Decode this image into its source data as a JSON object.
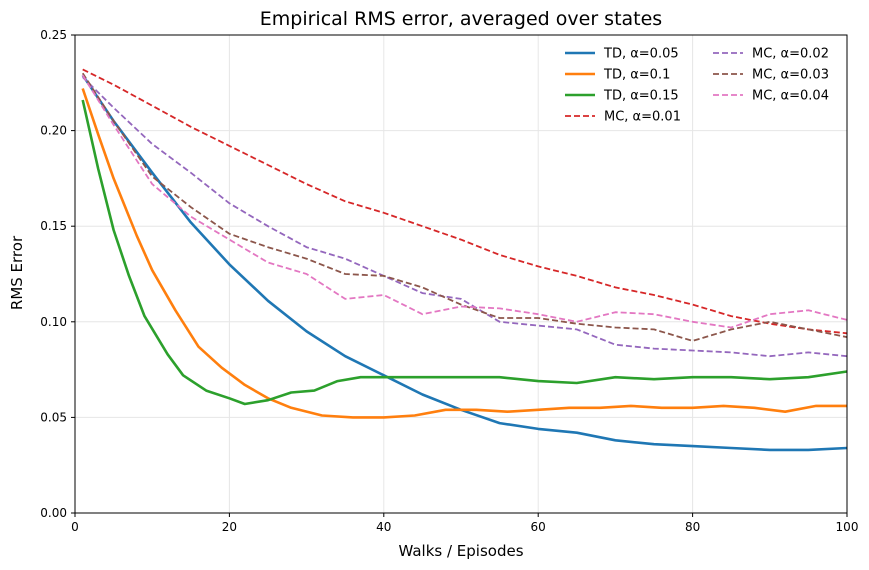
{
  "chart_data": {
    "type": "line",
    "title": "Empirical RMS error, averaged over states",
    "xlabel": "Walks / Episodes",
    "ylabel": "RMS Error",
    "xlim": [
      0,
      100
    ],
    "ylim": [
      0,
      0.25
    ],
    "xticks": [
      "0",
      "20",
      "40",
      "60",
      "80",
      "100"
    ],
    "yticks": [
      "0.00",
      "0.05",
      "0.10",
      "0.15",
      "0.20",
      "0.25"
    ],
    "grid": true,
    "legend_position": "top-right",
    "series": [
      {
        "name": "TD, α=0.05",
        "color": "#1f77b4",
        "dash": "solid",
        "x": [
          1,
          5,
          10,
          15,
          20,
          25,
          30,
          35,
          40,
          45,
          50,
          55,
          60,
          65,
          70,
          75,
          80,
          85,
          90,
          95,
          100
        ],
        "y": [
          0.229,
          0.205,
          0.178,
          0.152,
          0.13,
          0.111,
          0.095,
          0.082,
          0.072,
          0.062,
          0.054,
          0.047,
          0.044,
          0.042,
          0.038,
          0.036,
          0.035,
          0.034,
          0.033,
          0.033,
          0.034
        ]
      },
      {
        "name": "TD, α=0.1",
        "color": "#ff7f0e",
        "dash": "solid",
        "x": [
          1,
          3,
          5,
          8,
          10,
          13,
          16,
          19,
          22,
          25,
          28,
          32,
          36,
          40,
          44,
          48,
          52,
          56,
          60,
          64,
          68,
          72,
          76,
          80,
          84,
          88,
          92,
          96,
          100
        ],
        "y": [
          0.222,
          0.198,
          0.175,
          0.145,
          0.127,
          0.106,
          0.087,
          0.076,
          0.067,
          0.06,
          0.055,
          0.051,
          0.05,
          0.05,
          0.051,
          0.054,
          0.054,
          0.053,
          0.054,
          0.055,
          0.055,
          0.056,
          0.055,
          0.055,
          0.056,
          0.055,
          0.053,
          0.056,
          0.056
        ]
      },
      {
        "name": "TD, α=0.15",
        "color": "#2ca02c",
        "dash": "solid",
        "x": [
          1,
          3,
          5,
          7,
          9,
          12,
          14,
          17,
          20,
          22,
          25,
          28,
          31,
          34,
          37,
          40,
          45,
          50,
          55,
          60,
          65,
          70,
          75,
          80,
          85,
          90,
          95,
          100
        ],
        "y": [
          0.216,
          0.18,
          0.148,
          0.124,
          0.103,
          0.083,
          0.072,
          0.064,
          0.06,
          0.057,
          0.059,
          0.063,
          0.064,
          0.069,
          0.071,
          0.071,
          0.071,
          0.071,
          0.071,
          0.069,
          0.068,
          0.071,
          0.07,
          0.071,
          0.071,
          0.07,
          0.071,
          0.074
        ]
      },
      {
        "name": "MC, α=0.01",
        "color": "#d62728",
        "dash": "dashed",
        "x": [
          1,
          5,
          10,
          15,
          20,
          25,
          30,
          35,
          40,
          45,
          50,
          55,
          60,
          65,
          70,
          75,
          80,
          85,
          90,
          95,
          100
        ],
        "y": [
          0.232,
          0.224,
          0.213,
          0.202,
          0.192,
          0.182,
          0.172,
          0.163,
          0.157,
          0.15,
          0.143,
          0.135,
          0.129,
          0.124,
          0.118,
          0.114,
          0.109,
          0.103,
          0.099,
          0.096,
          0.094
        ]
      },
      {
        "name": "MC, α=0.02",
        "color": "#9467bd",
        "dash": "dashed",
        "x": [
          1,
          5,
          10,
          15,
          20,
          25,
          30,
          35,
          40,
          45,
          50,
          55,
          60,
          65,
          70,
          75,
          80,
          85,
          90,
          95,
          100
        ],
        "y": [
          0.228,
          0.212,
          0.193,
          0.178,
          0.162,
          0.15,
          0.139,
          0.133,
          0.124,
          0.115,
          0.112,
          0.1,
          0.098,
          0.096,
          0.088,
          0.086,
          0.085,
          0.084,
          0.082,
          0.084,
          0.082
        ]
      },
      {
        "name": "MC, α=0.03",
        "color": "#8c564b",
        "dash": "dashed",
        "x": [
          1,
          5,
          10,
          15,
          20,
          25,
          30,
          35,
          40,
          45,
          50,
          55,
          60,
          65,
          70,
          75,
          80,
          85,
          90,
          95,
          100
        ],
        "y": [
          0.23,
          0.205,
          0.176,
          0.16,
          0.146,
          0.139,
          0.133,
          0.125,
          0.124,
          0.118,
          0.109,
          0.102,
          0.102,
          0.099,
          0.097,
          0.096,
          0.09,
          0.096,
          0.1,
          0.096,
          0.092
        ]
      },
      {
        "name": "MC, α=0.04",
        "color": "#e377c2",
        "dash": "dashed",
        "x": [
          1,
          5,
          10,
          15,
          20,
          25,
          30,
          35,
          40,
          45,
          50,
          55,
          60,
          65,
          70,
          75,
          80,
          85,
          90,
          95,
          100
        ],
        "y": [
          0.229,
          0.203,
          0.172,
          0.155,
          0.143,
          0.131,
          0.125,
          0.112,
          0.114,
          0.104,
          0.108,
          0.107,
          0.104,
          0.1,
          0.105,
          0.104,
          0.1,
          0.097,
          0.104,
          0.106,
          0.101
        ]
      }
    ]
  }
}
